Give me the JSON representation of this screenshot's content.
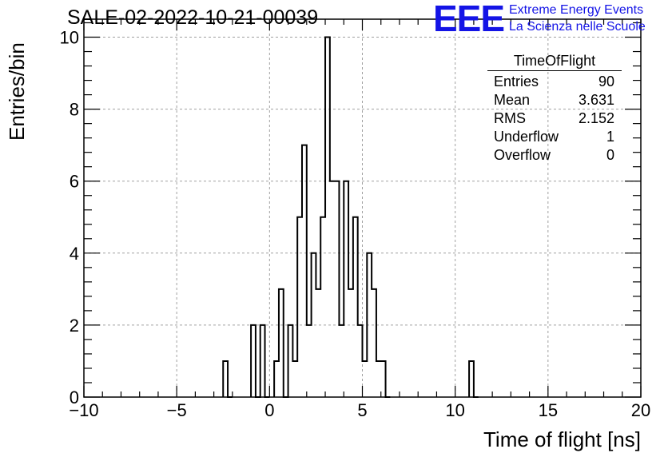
{
  "title": "SALE-02-2022-10-21-00039",
  "logo": {
    "mark": "EEE",
    "line1": "Extreme Energy Events",
    "line2": "La Scienza nelle Scuole"
  },
  "stats": {
    "title": "TimeOfFlight",
    "rows": [
      {
        "label": "Entries",
        "value": "90"
      },
      {
        "label": "Mean",
        "value": "3.631"
      },
      {
        "label": "RMS",
        "value": "2.152"
      },
      {
        "label": "Underflow",
        "value": "1"
      },
      {
        "label": "Overflow",
        "value": "0"
      }
    ]
  },
  "colors": {
    "line": "#000000",
    "grid": "#a0a0a0",
    "brand": "#1414e6"
  },
  "chart_data": {
    "type": "histogram",
    "xlabel": "Time of flight [ns]",
    "ylabel": "Entries/bin",
    "xlim": [
      -10,
      20
    ],
    "ylim": [
      0,
      10.5
    ],
    "bin_width": 0.25,
    "x_ticks": [
      -10,
      -5,
      0,
      5,
      10,
      15,
      20
    ],
    "x_tick_labels": [
      "−10",
      "−5",
      "0",
      "5",
      "10",
      "15",
      "20"
    ],
    "y_ticks": [
      0,
      2,
      4,
      6,
      8,
      10
    ],
    "y_tick_labels": [
      "0",
      "2",
      "4",
      "6",
      "8",
      "10"
    ],
    "grid": true,
    "legend": "top-right",
    "bins": [
      {
        "x0": -2.5,
        "count": 1
      },
      {
        "x0": -2.25,
        "count": 0
      },
      {
        "x0": -1.0,
        "count": 2
      },
      {
        "x0": -0.75,
        "count": 0
      },
      {
        "x0": -0.5,
        "count": 2
      },
      {
        "x0": -0.25,
        "count": 0
      },
      {
        "x0": 0.25,
        "count": 1
      },
      {
        "x0": 0.5,
        "count": 3
      },
      {
        "x0": 0.75,
        "count": 0
      },
      {
        "x0": 1.0,
        "count": 2
      },
      {
        "x0": 1.25,
        "count": 1
      },
      {
        "x0": 1.5,
        "count": 5
      },
      {
        "x0": 1.75,
        "count": 7
      },
      {
        "x0": 2.0,
        "count": 2
      },
      {
        "x0": 2.25,
        "count": 4
      },
      {
        "x0": 2.5,
        "count": 3
      },
      {
        "x0": 2.75,
        "count": 5
      },
      {
        "x0": 3.0,
        "count": 10
      },
      {
        "x0": 3.25,
        "count": 6
      },
      {
        "x0": 3.5,
        "count": 6
      },
      {
        "x0": 3.75,
        "count": 2
      },
      {
        "x0": 4.0,
        "count": 6
      },
      {
        "x0": 4.25,
        "count": 3
      },
      {
        "x0": 4.5,
        "count": 5
      },
      {
        "x0": 4.75,
        "count": 2
      },
      {
        "x0": 5.0,
        "count": 1
      },
      {
        "x0": 5.25,
        "count": 4
      },
      {
        "x0": 5.5,
        "count": 3
      },
      {
        "x0": 5.75,
        "count": 1
      },
      {
        "x0": 6.0,
        "count": 1
      },
      {
        "x0": 6.25,
        "count": 0
      },
      {
        "x0": 10.75,
        "count": 1
      },
      {
        "x0": 11.0,
        "count": 0
      }
    ]
  }
}
